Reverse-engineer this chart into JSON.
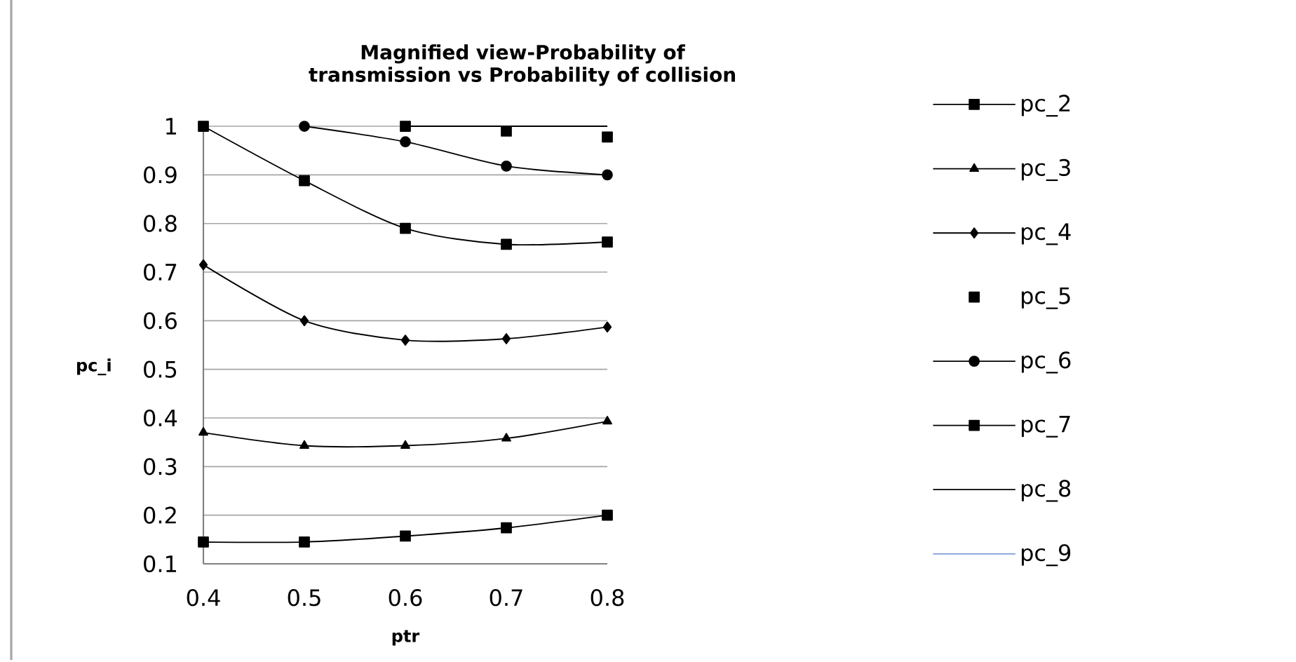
{
  "chart_data": {
    "type": "line",
    "title": "Magnified view-Probability of transmission vs Probability of collision",
    "xlabel": "ptr",
    "ylabel": "pc_i",
    "x": [
      0.4,
      0.5,
      0.6,
      0.7,
      0.8
    ],
    "xlim": [
      0.4,
      0.8
    ],
    "xticks": [
      0.4,
      0.5,
      0.6,
      0.7,
      0.8
    ],
    "ylim": [
      0.1,
      1
    ],
    "yticks": [
      0.1,
      0.2,
      0.3,
      0.4,
      0.5,
      0.6,
      0.7,
      0.8,
      0.9,
      1
    ],
    "grid": "y",
    "legend": "right",
    "series": [
      {
        "name": "pc_2",
        "color": "#000000",
        "marker": "square",
        "line_style": "solid",
        "values": [
          0.145,
          0.145,
          0.157,
          0.174,
          0.2
        ]
      },
      {
        "name": "pc_3",
        "color": "#000000",
        "marker": "triangle",
        "line_style": "solid",
        "values": [
          0.37,
          0.343,
          0.343,
          0.358,
          0.393
        ]
      },
      {
        "name": "pc_4",
        "color": "#000000",
        "marker": "diamond",
        "line_style": "solid",
        "values": [
          0.715,
          0.6,
          0.56,
          0.563,
          0.587
        ]
      },
      {
        "name": "pc_5",
        "type": "scatter",
        "color": "#000000",
        "marker": "square",
        "values": [
          null,
          null,
          1,
          0.99,
          0.978
        ]
      },
      {
        "name": "pc_6",
        "color": "#000000",
        "marker": "circle",
        "line_style": "solid",
        "values": [
          null,
          1,
          0.968,
          0.918,
          0.9
        ]
      },
      {
        "name": "pc_7",
        "color": "#000000",
        "marker": "square",
        "line_style": "solid",
        "values": [
          1,
          0.888,
          0.79,
          0.757,
          0.762
        ]
      },
      {
        "name": "pc_8",
        "color": "#000000",
        "marker": "none",
        "line_style": "solid",
        "values": [
          null,
          null,
          1,
          1,
          1
        ]
      },
      {
        "name": "pc_9",
        "color": "#7f9fd8",
        "marker": "none",
        "line_style": "solid",
        "values": [
          null,
          null,
          null,
          null,
          null
        ]
      }
    ]
  }
}
